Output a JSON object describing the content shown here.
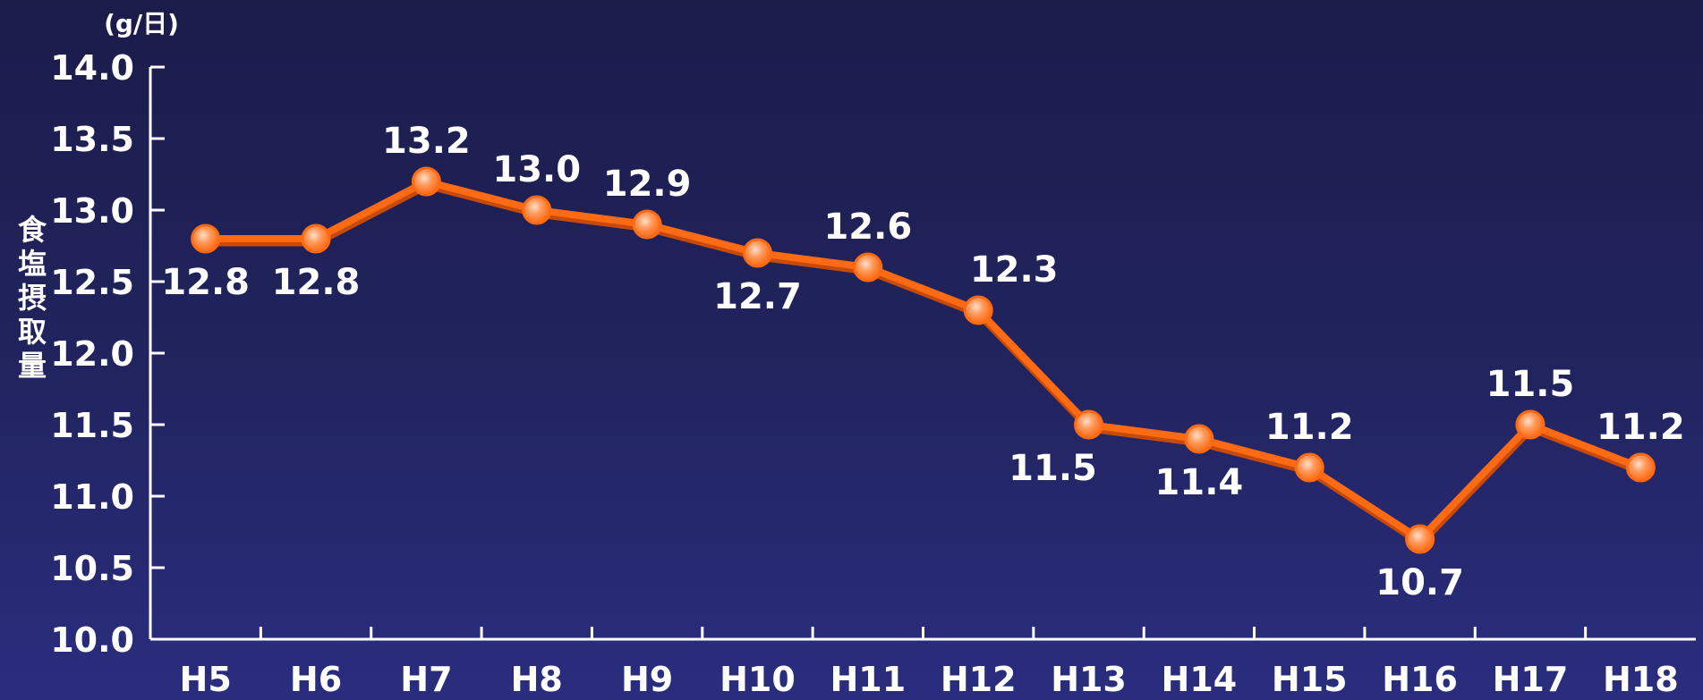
{
  "chart_data": {
    "type": "line",
    "unit_label": "(g/日)",
    "ylabel": "食塩摂取量",
    "xlabel": "",
    "categories": [
      "H5",
      "H6",
      "H7",
      "H8",
      "H9",
      "H10",
      "H11",
      "H12",
      "H13",
      "H14",
      "H15",
      "H16",
      "H17",
      "H18"
    ],
    "values": [
      12.8,
      12.8,
      13.2,
      13.0,
      12.9,
      12.7,
      12.6,
      12.3,
      11.5,
      11.4,
      11.2,
      10.7,
      11.5,
      11.2
    ],
    "data_labels": [
      "12.8",
      "12.8",
      "13.2",
      "13.0",
      "12.9",
      "12.7",
      "12.6",
      "12.3",
      "11.5",
      "11.4",
      "11.2",
      "10.7",
      "11.5",
      "11.2"
    ],
    "ylim": [
      10.0,
      14.0
    ],
    "yticks": [
      "10.0",
      "10.5",
      "11.0",
      "11.5",
      "12.0",
      "12.5",
      "13.0",
      "13.5",
      "14.0"
    ],
    "grid": false,
    "legend": "none",
    "colors": {
      "line": "#ff6a13",
      "line_shadow": "#c64a0a",
      "marker_center": "#ffd2b5",
      "axis": "#ffffff",
      "text": "#ffffff"
    }
  }
}
